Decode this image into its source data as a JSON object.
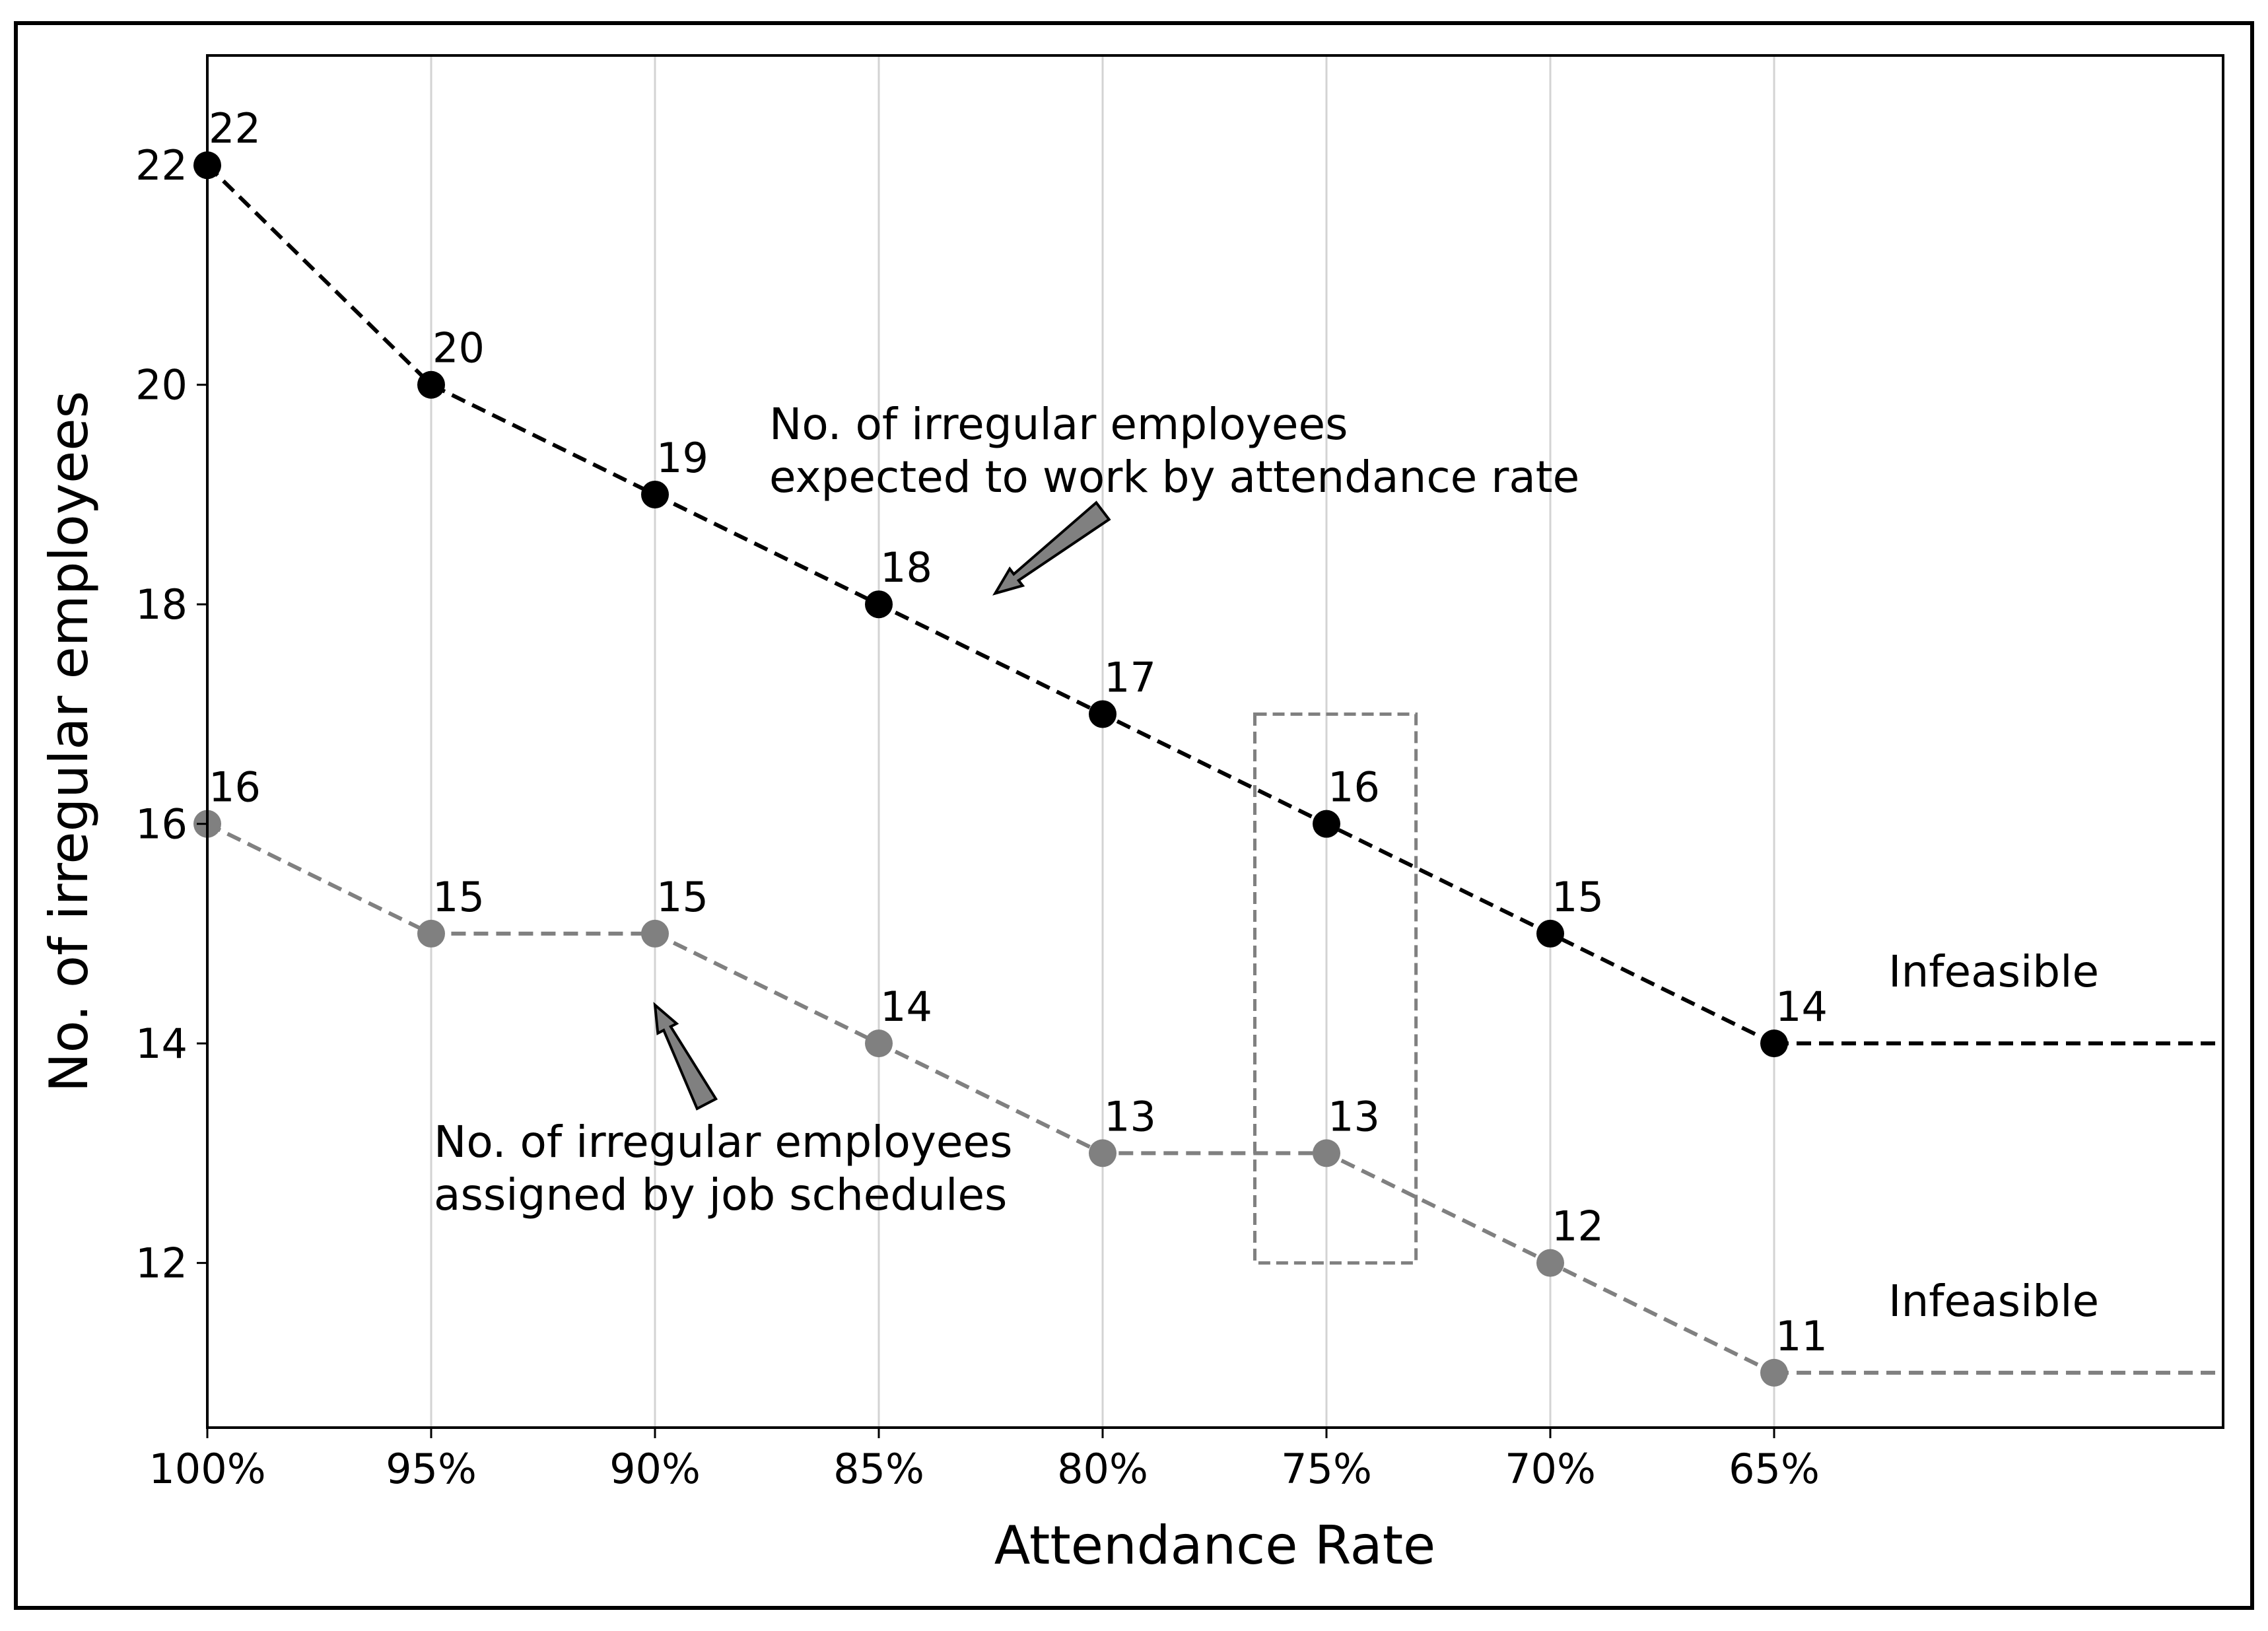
{
  "chart_data": {
    "type": "line",
    "title": "",
    "xlabel": "Attendance Rate",
    "ylabel": "No. of irregular employees",
    "categories": [
      "100%",
      "95%",
      "90%",
      "85%",
      "80%",
      "75%",
      "70%",
      "65%"
    ],
    "ylim": [
      10.5,
      23
    ],
    "yticks": [
      12,
      14,
      16,
      18,
      20,
      22
    ],
    "grid": "vertical",
    "series": [
      {
        "name": "No. of irregular employees expected to work by attendance rate",
        "color": "#000000",
        "values": [
          22,
          20,
          19,
          18,
          17,
          16,
          15,
          14
        ],
        "labels": [
          "22",
          "20",
          "19",
          "18",
          "17",
          "16",
          "15",
          "14"
        ],
        "tail_value": 14,
        "tail_label": "Infeasible"
      },
      {
        "name": "No. of irregular employees assigned by job schedules",
        "color": "#808080",
        "values": [
          16,
          15,
          15,
          14,
          13,
          13,
          12,
          11
        ],
        "labels": [
          "16",
          "15",
          "15",
          "14",
          "13",
          "13",
          "12",
          "11"
        ],
        "tail_value": 11,
        "tail_label": "Infeasible"
      }
    ],
    "annotations": [
      {
        "lines": [
          "No. of irregular employees",
          "expected to work by attendance rate"
        ],
        "target": {
          "category_index": 3.52,
          "y": 18.1
        },
        "tail": {
          "category_index": 4.0,
          "y": 18.85
        }
      },
      {
        "lines": [
          "No. of irregular employees",
          "assigned by job schedules"
        ],
        "target": {
          "category_index": 2.0,
          "y": 14.35
        },
        "tail": {
          "category_index": 2.23,
          "y": 13.45
        }
      }
    ],
    "highlight_box": {
      "category_from": 4.68,
      "category_to": 5.4,
      "y_from": 12,
      "y_to": 17
    }
  }
}
